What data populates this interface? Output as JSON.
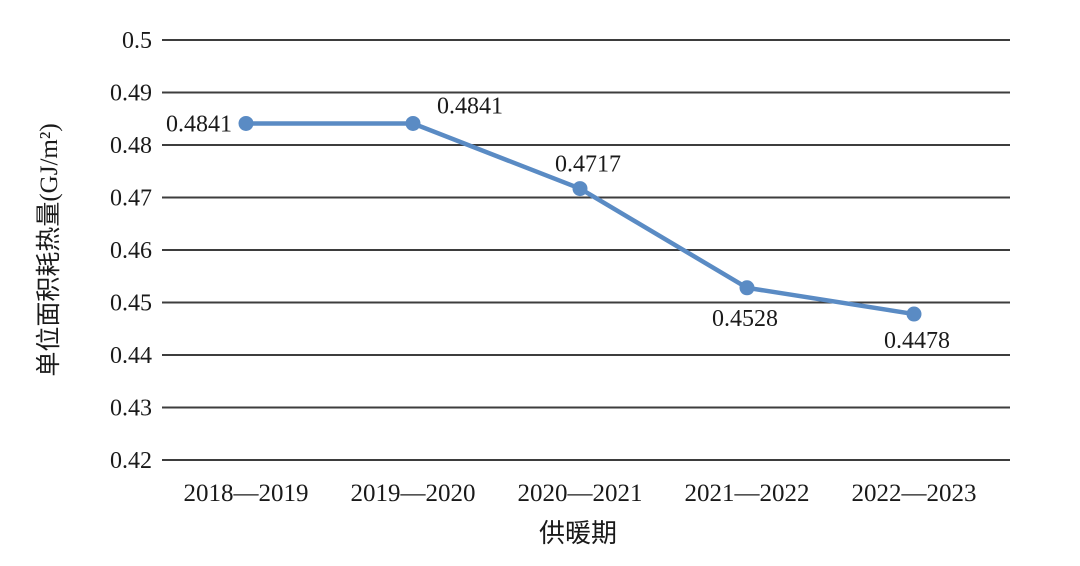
{
  "chart_data": {
    "type": "line",
    "title": "",
    "categories": [
      "2018—2019",
      "2019—2020",
      "2020—2021",
      "2021—2022",
      "2022—2023"
    ],
    "values": [
      0.4841,
      0.4841,
      0.4717,
      0.4528,
      0.4478
    ],
    "point_labels": [
      "0.4841",
      "0.4841",
      "0.4717",
      "0.4528",
      "0.4478"
    ],
    "xlabel": "供暖期",
    "ylabel": "单位面积耗热量(GJ/m²)",
    "y_ticks": [
      "0.5",
      "0.49",
      "0.48",
      "0.47",
      "0.46",
      "0.45",
      "0.44",
      "0.43",
      "0.42"
    ],
    "ylim": [
      0.42,
      0.5
    ],
    "grid": "horizontal-only",
    "legend": "none",
    "colors": {
      "line": "#5A8BC4",
      "marker": "#5A8BC4",
      "gridline": "#3D3D3D",
      "text": "#1A1A1A",
      "background": "#FFFFFF"
    }
  }
}
